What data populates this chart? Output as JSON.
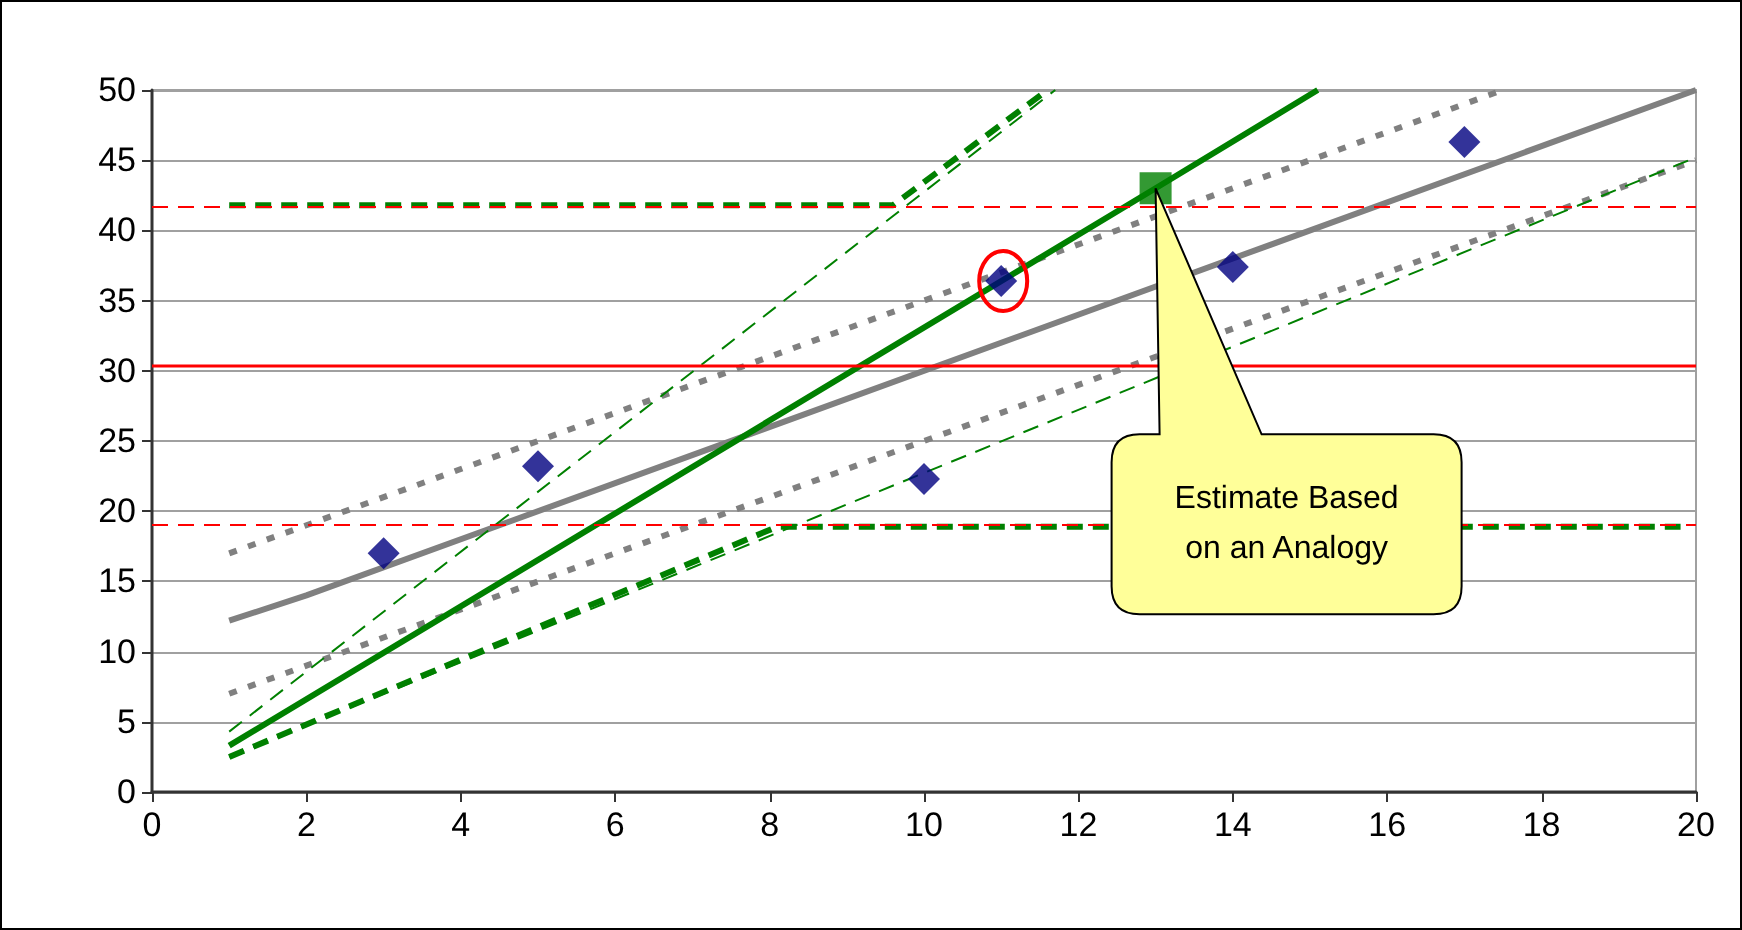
{
  "chart_data": {
    "type": "line",
    "xlim": [
      0,
      20
    ],
    "ylim": [
      0,
      50
    ],
    "xticks": [
      0,
      2,
      4,
      6,
      8,
      10,
      12,
      14,
      16,
      18,
      20
    ],
    "yticks": [
      0,
      5,
      10,
      15,
      20,
      25,
      30,
      35,
      40,
      45,
      50
    ],
    "grid": "y",
    "series": [
      {
        "color": "#808080",
        "line_style": "solid",
        "marker": "none",
        "x": [
          1,
          2,
          20
        ],
        "values": [
          12.2,
          14,
          50
        ]
      },
      {
        "color": "#808080",
        "line_style": "dotted",
        "marker": "none",
        "x": [
          1,
          2,
          10,
          17.5
        ],
        "values": [
          17,
          19,
          35,
          50
        ]
      },
      {
        "color": "#808080",
        "line_style": "dotted",
        "marker": "none",
        "x": [
          1,
          2,
          10,
          20
        ],
        "values": [
          7,
          9,
          25,
          45
        ]
      },
      {
        "color": "#008000",
        "line_style": "solid",
        "marker": "none",
        "x": [
          1,
          13,
          15.1
        ],
        "values": [
          3.3,
          43,
          50
        ]
      },
      {
        "color": "#008000",
        "line_style": "dashed",
        "marker": "none",
        "x": [
          1,
          11.7
        ],
        "values": [
          4.3,
          50
        ]
      },
      {
        "color": "#008000",
        "line_style": "dashed",
        "marker": "none",
        "x": [
          1,
          20
        ],
        "values": [
          2.5,
          45.2
        ]
      },
      {
        "color": "#008000",
        "line_style": "dashed",
        "marker": "none",
        "x": [
          1,
          9.6,
          11.6
        ],
        "values": [
          41.8,
          41.8,
          50
        ]
      },
      {
        "color": "#008000",
        "line_style": "dashed",
        "marker": "none",
        "x": [
          1,
          8.1,
          19.8
        ],
        "values": [
          2.5,
          18.9,
          18.9
        ]
      },
      {
        "type": "scatter",
        "color": "#000080",
        "marker": "diamond",
        "x": [
          3,
          5,
          10,
          11,
          14,
          17
        ],
        "values": [
          17,
          23.2,
          22.3,
          36.4,
          37.4,
          46.3
        ]
      },
      {
        "type": "scatter",
        "color": "#008000",
        "marker": "square",
        "x": [
          13
        ],
        "values": [
          43
        ]
      }
    ],
    "ref_lines": [
      {
        "axis": "y",
        "value": 30.4,
        "color": "#ff0000",
        "line_style": "solid"
      },
      {
        "axis": "y",
        "value": 41.7,
        "color": "#ff0000",
        "line_style": "dashed"
      },
      {
        "axis": "y",
        "value": 19,
        "color": "#ff0000",
        "line_style": "dashed"
      }
    ],
    "annotations": [
      "Estimate Based on an Analogy"
    ]
  }
}
